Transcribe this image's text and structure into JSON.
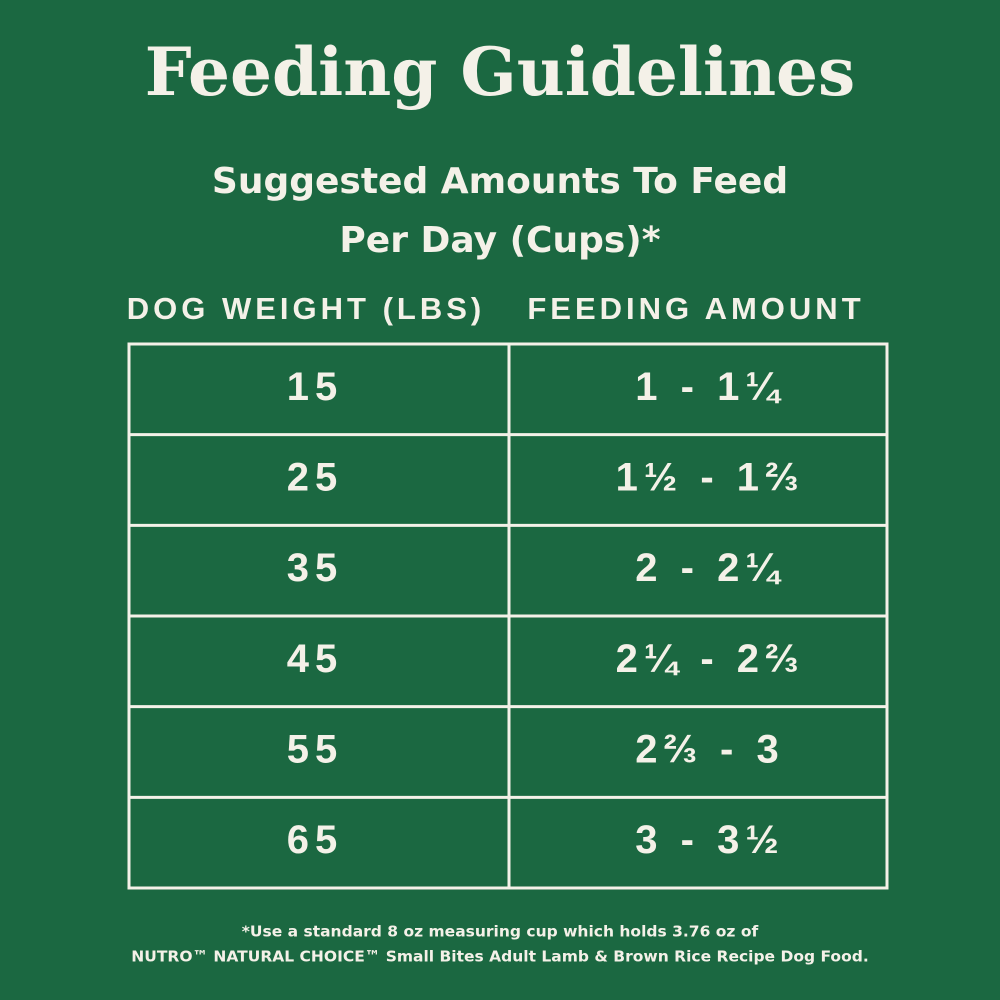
{
  "header": {
    "title": "Feeding Guidelines",
    "subtitle": [
      "Suggested Amounts To Feed",
      "Per Day (Cups)*"
    ]
  },
  "table": {
    "columns": [
      "DOG WEIGHT (LBS)",
      "FEEDING AMOUNT"
    ],
    "rows": [
      [
        "15",
        "1 - 1¼"
      ],
      [
        "25",
        "1½ - 1⅔"
      ],
      [
        "35",
        "2 - 2¼"
      ],
      [
        "45",
        "2¼ - 2⅔"
      ],
      [
        "55",
        "2⅔ - 3"
      ],
      [
        "65",
        "3 - 3½"
      ]
    ]
  },
  "footnote": [
    "*Use a standard 8 oz measuring cup which holds 3.76 oz of",
    "NUTRO™ NATURAL CHOICE™ Small Bites Adult Lamb & Brown Rice Recipe Dog Food."
  ]
}
